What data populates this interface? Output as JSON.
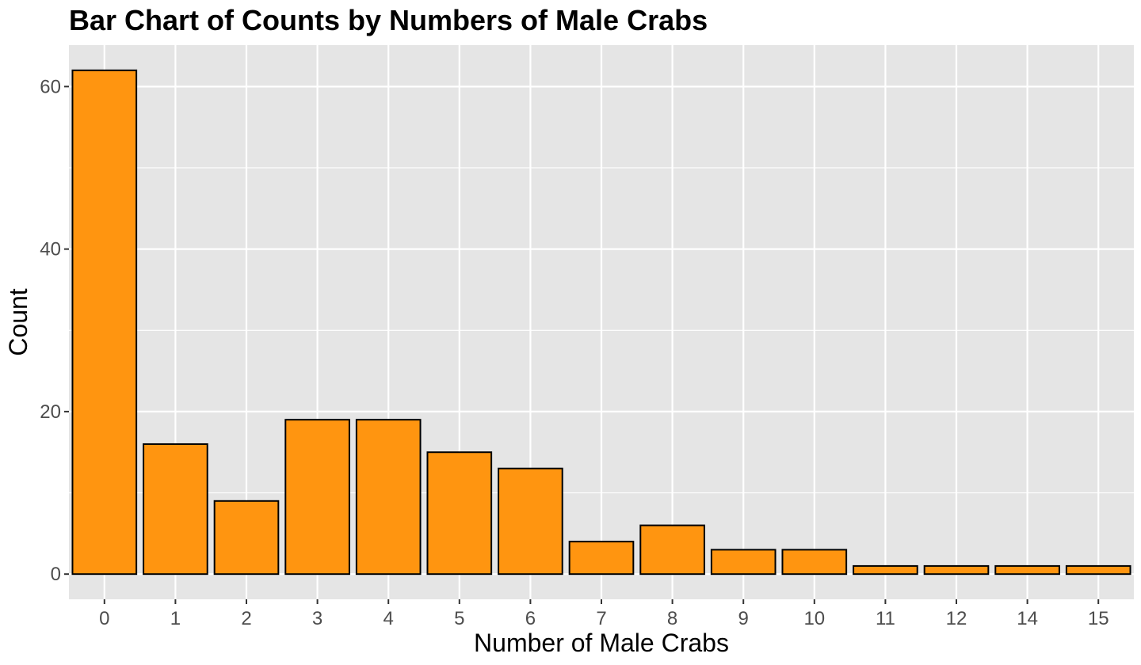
{
  "chart_data": {
    "type": "bar",
    "title": "Bar Chart of Counts by Numbers of Male Crabs",
    "xlabel": "Number of Male Crabs",
    "ylabel": "Count",
    "categories": [
      "0",
      "1",
      "2",
      "3",
      "4",
      "5",
      "6",
      "7",
      "8",
      "9",
      "10",
      "11",
      "12",
      "14",
      "15"
    ],
    "values": [
      62,
      16,
      9,
      19,
      19,
      15,
      13,
      4,
      6,
      3,
      3,
      1,
      1,
      1,
      1
    ],
    "yticks": [
      0,
      20,
      40,
      60
    ],
    "ylim": [
      -3.1,
      65.1
    ],
    "grid": true,
    "legend": "none",
    "colors": {
      "bar_fill": "#FF9510",
      "bar_stroke": "#000000",
      "panel_background": "#E5E5E5",
      "grid_major": "#FFFFFF",
      "tick_text": "#4D4D4D"
    }
  }
}
